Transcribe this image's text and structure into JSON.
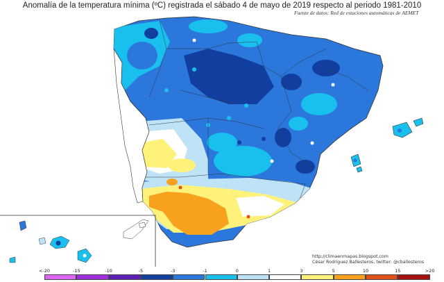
{
  "title": "Anomalía de la temperatura mínima (ºC) registrada el sábado 4 de mayo de 2019 respecto al periodo 1981-2010",
  "source": "Fuente de datos: Red de estaciones automáticas de AEMET",
  "credit": {
    "url": "http://climaenmapas.blogspot.com",
    "author": "César Rodríguez Ballesteros, twitter: @cballesteros"
  },
  "legend": {
    "labels": [
      "<-20",
      "-15",
      "-10",
      "-5",
      "-3",
      "-1",
      "0",
      "1",
      "3",
      "5",
      "10",
      "15",
      ">20"
    ],
    "colors": [
      "#dd66f2",
      "#9f2fdc",
      "#5d1fb4",
      "#123f9f",
      "#2b77dc",
      "#19c0ee",
      "#bfe3f6",
      "#ffffff",
      "#fff27a",
      "#f7a11f",
      "#e05218",
      "#a3100d",
      "#6a2f0c"
    ]
  }
}
